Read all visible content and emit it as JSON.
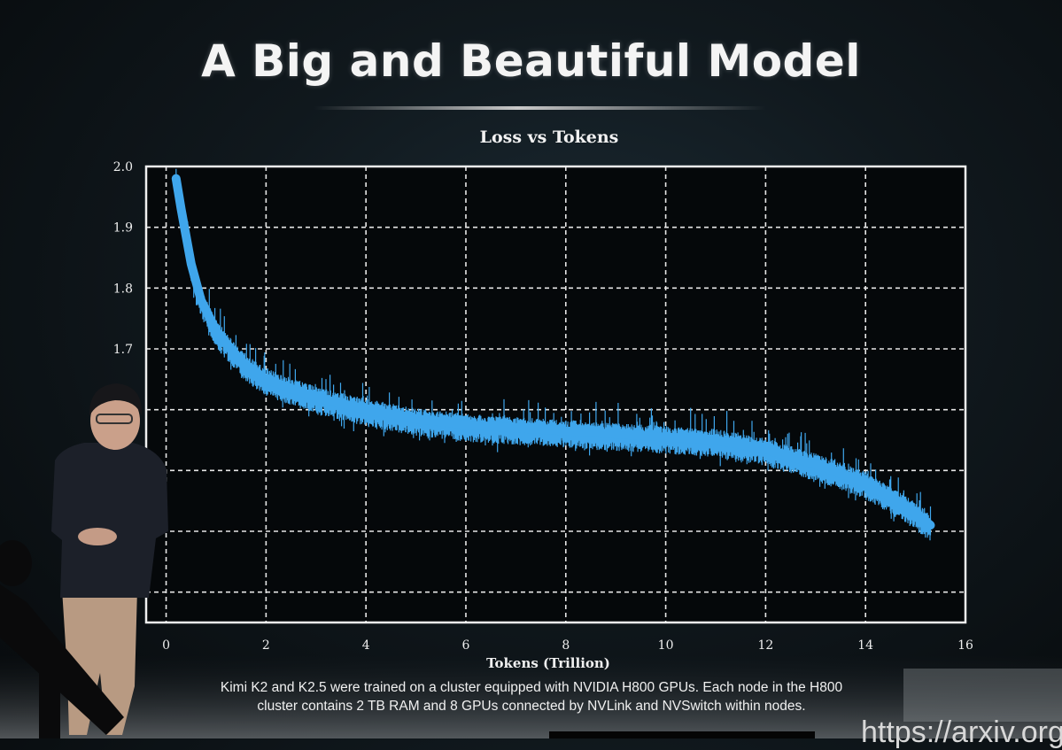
{
  "slide": {
    "title": "A Big and Beautiful Model",
    "caption_line1": "Kimi K2 and K2.5 were trained on a cluster equipped with NVIDIA H800 GPUs. Each node in the H800",
    "caption_line2": "cluster contains 2 TB RAM and 8 GPUs connected by NVLink and NVSwitch within nodes.",
    "corner_text": "https://arxiv.org/"
  },
  "chart_data": {
    "type": "line",
    "title": "Loss vs Tokens",
    "xlabel": "Tokens (Trillion)",
    "ylabel": "",
    "xlim": [
      -0.4,
      16
    ],
    "ylim": [
      1.25,
      2.0
    ],
    "x_ticks": [
      0,
      2,
      4,
      6,
      8,
      10,
      12,
      14,
      16
    ],
    "x_tick_labels": [
      "0",
      "2",
      "4",
      "6",
      "8",
      "10",
      "12",
      "14",
      "16"
    ],
    "y_ticks": [
      1.7,
      1.8,
      1.9,
      2.0
    ],
    "y_tick_labels": [
      "1.7",
      "1.8",
      "1.9",
      "2.0"
    ],
    "grid": true,
    "line_color": "#3fa6ec",
    "background": "#05080a",
    "series": [
      {
        "x": [
          0.2,
          0.3,
          0.5,
          0.7,
          1.0,
          1.5,
          2.0,
          3.0,
          4.0,
          5.0,
          6.0,
          7.0,
          8.0,
          9.0,
          10.0,
          11.0,
          12.0,
          13.0,
          14.0,
          14.5,
          15.0,
          15.3
        ],
        "y": [
          1.98,
          1.93,
          1.84,
          1.78,
          1.73,
          1.68,
          1.65,
          1.62,
          1.6,
          1.585,
          1.575,
          1.57,
          1.565,
          1.56,
          1.555,
          1.55,
          1.535,
          1.51,
          1.48,
          1.455,
          1.43,
          1.41
        ]
      }
    ]
  }
}
